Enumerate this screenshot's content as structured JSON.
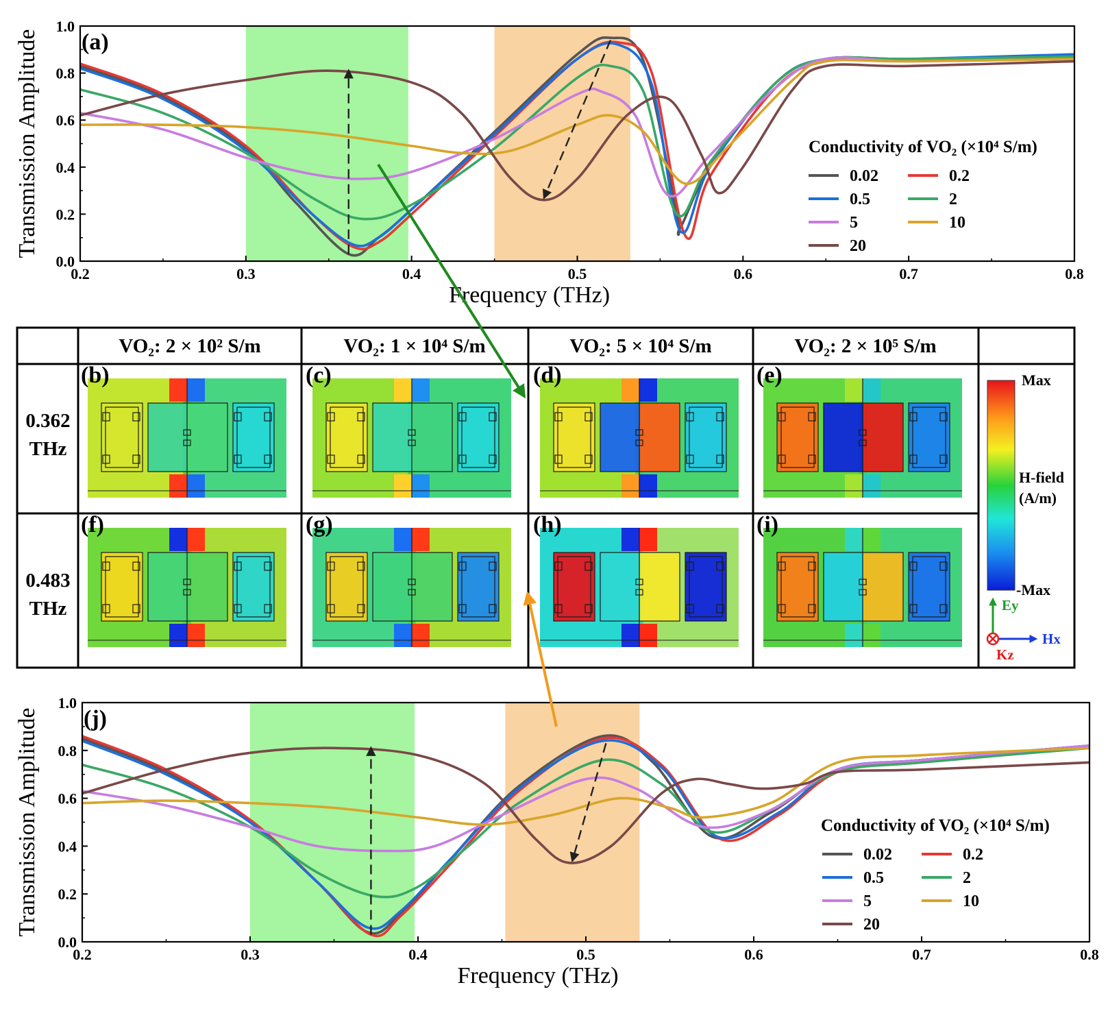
{
  "chart_data": [
    {
      "panel": "(a)",
      "type": "line",
      "xlabel": "Frequency (THz)",
      "ylabel": "Transmission Amplitude",
      "xlim": [
        0.2,
        0.8
      ],
      "ylim": [
        0.0,
        1.0
      ],
      "xticks": [
        "0.2",
        "0.3",
        "0.4",
        "0.5",
        "0.6",
        "0.7",
        "0.8"
      ],
      "yticks": [
        "0.0",
        "0.2",
        "0.4",
        "0.6",
        "0.8",
        "1.0"
      ],
      "legend_title": "Conductivity of VO₂ (×10⁴ S/m)",
      "shaded_bands": [
        {
          "x0": 0.3,
          "x1": 0.398,
          "color": "#a6f5a0"
        },
        {
          "x0": 0.45,
          "x1": 0.532,
          "color": "#f9d3a2"
        }
      ],
      "arrows": [
        {
          "from": [
            0.362,
            0.03
          ],
          "to": [
            0.362,
            0.81
          ]
        },
        {
          "from": [
            0.52,
            0.94
          ],
          "to": [
            0.48,
            0.27
          ]
        }
      ],
      "series": [
        {
          "name": "0.02",
          "color": "#555555",
          "points": [
            [
              0.2,
              0.83
            ],
            [
              0.25,
              0.7
            ],
            [
              0.3,
              0.48
            ],
            [
              0.33,
              0.25
            ],
            [
              0.362,
              0.03
            ],
            [
              0.38,
              0.1
            ],
            [
              0.4,
              0.22
            ],
            [
              0.45,
              0.55
            ],
            [
              0.5,
              0.88
            ],
            [
              0.52,
              0.95
            ],
            [
              0.54,
              0.85
            ],
            [
              0.56,
              0.2
            ],
            [
              0.562,
              0.14
            ],
            [
              0.58,
              0.4
            ],
            [
              0.62,
              0.76
            ],
            [
              0.65,
              0.86
            ],
            [
              0.7,
              0.86
            ],
            [
              0.8,
              0.87
            ]
          ]
        },
        {
          "name": "0.2",
          "color": "#e53935",
          "points": [
            [
              0.2,
              0.84
            ],
            [
              0.25,
              0.71
            ],
            [
              0.3,
              0.49
            ],
            [
              0.34,
              0.2
            ],
            [
              0.365,
              0.06
            ],
            [
              0.38,
              0.08
            ],
            [
              0.4,
              0.2
            ],
            [
              0.45,
              0.53
            ],
            [
              0.5,
              0.86
            ],
            [
              0.525,
              0.93
            ],
            [
              0.545,
              0.8
            ],
            [
              0.565,
              0.11
            ],
            [
              0.58,
              0.36
            ],
            [
              0.62,
              0.74
            ],
            [
              0.65,
              0.85
            ],
            [
              0.7,
              0.86
            ],
            [
              0.8,
              0.87
            ]
          ]
        },
        {
          "name": "0.5",
          "color": "#1e6fd9",
          "points": [
            [
              0.2,
              0.82
            ],
            [
              0.25,
              0.69
            ],
            [
              0.3,
              0.47
            ],
            [
              0.34,
              0.2
            ],
            [
              0.365,
              0.07
            ],
            [
              0.38,
              0.1
            ],
            [
              0.4,
              0.22
            ],
            [
              0.45,
              0.54
            ],
            [
              0.5,
              0.86
            ],
            [
              0.525,
              0.92
            ],
            [
              0.545,
              0.75
            ],
            [
              0.562,
              0.13
            ],
            [
              0.58,
              0.4
            ],
            [
              0.62,
              0.76
            ],
            [
              0.65,
              0.86
            ],
            [
              0.7,
              0.86
            ],
            [
              0.8,
              0.88
            ]
          ]
        },
        {
          "name": "2",
          "color": "#3aa866",
          "points": [
            [
              0.2,
              0.73
            ],
            [
              0.25,
              0.63
            ],
            [
              0.3,
              0.46
            ],
            [
              0.34,
              0.27
            ],
            [
              0.37,
              0.18
            ],
            [
              0.4,
              0.24
            ],
            [
              0.45,
              0.48
            ],
            [
              0.5,
              0.78
            ],
            [
              0.52,
              0.83
            ],
            [
              0.54,
              0.72
            ],
            [
              0.56,
              0.2
            ],
            [
              0.58,
              0.42
            ],
            [
              0.62,
              0.76
            ],
            [
              0.65,
              0.86
            ],
            [
              0.7,
              0.86
            ],
            [
              0.8,
              0.87
            ]
          ]
        },
        {
          "name": "5",
          "color": "#c77de0",
          "points": [
            [
              0.2,
              0.63
            ],
            [
              0.25,
              0.56
            ],
            [
              0.3,
              0.44
            ],
            [
              0.34,
              0.37
            ],
            [
              0.37,
              0.35
            ],
            [
              0.4,
              0.38
            ],
            [
              0.45,
              0.52
            ],
            [
              0.5,
              0.71
            ],
            [
              0.515,
              0.72
            ],
            [
              0.535,
              0.62
            ],
            [
              0.555,
              0.28
            ],
            [
              0.58,
              0.45
            ],
            [
              0.62,
              0.74
            ],
            [
              0.65,
              0.86
            ],
            [
              0.7,
              0.85
            ],
            [
              0.8,
              0.86
            ]
          ]
        },
        {
          "name": "10",
          "color": "#d8a52a",
          "points": [
            [
              0.2,
              0.58
            ],
            [
              0.25,
              0.58
            ],
            [
              0.3,
              0.57
            ],
            [
              0.35,
              0.54
            ],
            [
              0.4,
              0.49
            ],
            [
              0.43,
              0.46
            ],
            [
              0.46,
              0.47
            ],
            [
              0.5,
              0.58
            ],
            [
              0.52,
              0.62
            ],
            [
              0.54,
              0.55
            ],
            [
              0.565,
              0.33
            ],
            [
              0.59,
              0.48
            ],
            [
              0.63,
              0.77
            ],
            [
              0.65,
              0.85
            ],
            [
              0.7,
              0.85
            ],
            [
              0.8,
              0.86
            ]
          ]
        },
        {
          "name": "20",
          "color": "#7a4848",
          "points": [
            [
              0.2,
              0.62
            ],
            [
              0.25,
              0.71
            ],
            [
              0.3,
              0.77
            ],
            [
              0.35,
              0.81
            ],
            [
              0.4,
              0.76
            ],
            [
              0.43,
              0.63
            ],
            [
              0.46,
              0.35
            ],
            [
              0.48,
              0.26
            ],
            [
              0.5,
              0.35
            ],
            [
              0.53,
              0.62
            ],
            [
              0.555,
              0.69
            ],
            [
              0.575,
              0.45
            ],
            [
              0.585,
              0.29
            ],
            [
              0.6,
              0.4
            ],
            [
              0.63,
              0.73
            ],
            [
              0.65,
              0.83
            ],
            [
              0.7,
              0.83
            ],
            [
              0.8,
              0.85
            ]
          ]
        }
      ]
    },
    {
      "panel": "(j)",
      "type": "line",
      "xlabel": "Frequency (THz)",
      "ylabel": "Transmission Amplitude",
      "xlim": [
        0.2,
        0.8
      ],
      "ylim": [
        0.0,
        1.0
      ],
      "xticks": [
        "0.2",
        "0.3",
        "0.4",
        "0.5",
        "0.6",
        "0.7",
        "0.8"
      ],
      "yticks": [
        "0.0",
        "0.2",
        "0.4",
        "0.6",
        "0.8",
        "1.0"
      ],
      "legend_title": "Conductivity of VO₂ (×10⁴ S/m)",
      "shaded_bands": [
        {
          "x0": 0.3,
          "x1": 0.398,
          "color": "#a6f5a0"
        },
        {
          "x0": 0.452,
          "x1": 0.532,
          "color": "#f9d3a2"
        }
      ],
      "arrows": [
        {
          "from": [
            0.372,
            0.03
          ],
          "to": [
            0.372,
            0.81
          ]
        },
        {
          "from": [
            0.512,
            0.83
          ],
          "to": [
            0.492,
            0.34
          ]
        }
      ],
      "series": [
        {
          "name": "0.02",
          "color": "#555555",
          "points": [
            [
              0.2,
              0.85
            ],
            [
              0.25,
              0.71
            ],
            [
              0.3,
              0.5
            ],
            [
              0.34,
              0.25
            ],
            [
              0.37,
              0.04
            ],
            [
              0.39,
              0.12
            ],
            [
              0.42,
              0.35
            ],
            [
              0.46,
              0.65
            ],
            [
              0.51,
              0.86
            ],
            [
              0.54,
              0.75
            ],
            [
              0.575,
              0.44
            ],
            [
              0.61,
              0.54
            ],
            [
              0.65,
              0.72
            ],
            [
              0.7,
              0.76
            ],
            [
              0.8,
              0.82
            ]
          ]
        },
        {
          "name": "0.2",
          "color": "#e53935",
          "points": [
            [
              0.2,
              0.86
            ],
            [
              0.25,
              0.72
            ],
            [
              0.3,
              0.51
            ],
            [
              0.34,
              0.25
            ],
            [
              0.372,
              0.03
            ],
            [
              0.39,
              0.11
            ],
            [
              0.42,
              0.33
            ],
            [
              0.46,
              0.63
            ],
            [
              0.51,
              0.85
            ],
            [
              0.545,
              0.74
            ],
            [
              0.58,
              0.43
            ],
            [
              0.615,
              0.53
            ],
            [
              0.65,
              0.71
            ],
            [
              0.7,
              0.76
            ],
            [
              0.8,
              0.81
            ]
          ]
        },
        {
          "name": "0.5",
          "color": "#1e6fd9",
          "points": [
            [
              0.2,
              0.84
            ],
            [
              0.25,
              0.7
            ],
            [
              0.3,
              0.5
            ],
            [
              0.34,
              0.25
            ],
            [
              0.37,
              0.06
            ],
            [
              0.39,
              0.13
            ],
            [
              0.42,
              0.35
            ],
            [
              0.46,
              0.64
            ],
            [
              0.51,
              0.84
            ],
            [
              0.545,
              0.73
            ],
            [
              0.578,
              0.44
            ],
            [
              0.615,
              0.54
            ],
            [
              0.65,
              0.72
            ],
            [
              0.7,
              0.76
            ],
            [
              0.8,
              0.82
            ]
          ]
        },
        {
          "name": "2",
          "color": "#3aa866",
          "points": [
            [
              0.2,
              0.74
            ],
            [
              0.25,
              0.64
            ],
            [
              0.3,
              0.48
            ],
            [
              0.34,
              0.29
            ],
            [
              0.375,
              0.19
            ],
            [
              0.4,
              0.23
            ],
            [
              0.43,
              0.4
            ],
            [
              0.46,
              0.58
            ],
            [
              0.51,
              0.76
            ],
            [
              0.545,
              0.66
            ],
            [
              0.575,
              0.46
            ],
            [
              0.61,
              0.55
            ],
            [
              0.65,
              0.71
            ],
            [
              0.7,
              0.75
            ],
            [
              0.8,
              0.81
            ]
          ]
        },
        {
          "name": "5",
          "color": "#c77de0",
          "points": [
            [
              0.2,
              0.63
            ],
            [
              0.25,
              0.57
            ],
            [
              0.3,
              0.48
            ],
            [
              0.34,
              0.4
            ],
            [
              0.38,
              0.38
            ],
            [
              0.41,
              0.4
            ],
            [
              0.45,
              0.53
            ],
            [
              0.5,
              0.68
            ],
            [
              0.53,
              0.64
            ],
            [
              0.57,
              0.48
            ],
            [
              0.61,
              0.55
            ],
            [
              0.65,
              0.72
            ],
            [
              0.7,
              0.76
            ],
            [
              0.8,
              0.82
            ]
          ]
        },
        {
          "name": "10",
          "color": "#d8a52a",
          "points": [
            [
              0.2,
              0.58
            ],
            [
              0.25,
              0.59
            ],
            [
              0.3,
              0.58
            ],
            [
              0.35,
              0.56
            ],
            [
              0.4,
              0.52
            ],
            [
              0.44,
              0.49
            ],
            [
              0.48,
              0.53
            ],
            [
              0.52,
              0.6
            ],
            [
              0.55,
              0.56
            ],
            [
              0.57,
              0.52
            ],
            [
              0.61,
              0.58
            ],
            [
              0.65,
              0.75
            ],
            [
              0.7,
              0.78
            ],
            [
              0.8,
              0.81
            ]
          ]
        },
        {
          "name": "20",
          "color": "#7a4848",
          "points": [
            [
              0.2,
              0.62
            ],
            [
              0.25,
              0.72
            ],
            [
              0.3,
              0.79
            ],
            [
              0.35,
              0.81
            ],
            [
              0.4,
              0.78
            ],
            [
              0.44,
              0.66
            ],
            [
              0.47,
              0.43
            ],
            [
              0.49,
              0.33
            ],
            [
              0.515,
              0.4
            ],
            [
              0.545,
              0.62
            ],
            [
              0.565,
              0.68
            ],
            [
              0.585,
              0.66
            ],
            [
              0.605,
              0.64
            ],
            [
              0.63,
              0.66
            ],
            [
              0.65,
              0.71
            ],
            [
              0.7,
              0.72
            ],
            [
              0.8,
              0.75
            ]
          ]
        }
      ]
    }
  ],
  "panel_a_letter": "(a)",
  "panel_j_letter": "(j)",
  "axis_label_x": "Frequency (THz)",
  "axis_label_y": "Transmission Amplitude",
  "legend_title": "Conductivity of VO₂ (×10⁴ S/m)",
  "field_maps": {
    "column_headers": [
      "VO₂: 2 × 10² S/m",
      "VO₂: 1 × 10⁴ S/m",
      "VO₂: 5 × 10⁴ S/m",
      "VO₂: 2 × 10⁵ S/m"
    ],
    "row_labels": [
      {
        "line1": "0.362",
        "line2": "THz"
      },
      {
        "line1": "0.483",
        "line2": "THz"
      }
    ],
    "panel_letters": [
      "(b)",
      "(c)",
      "(d)",
      "(e)",
      "(f)",
      "(g)",
      "(h)",
      "(i)"
    ],
    "colorbar": {
      "max": "Max",
      "min": "-Max",
      "title_line1": "H-field",
      "title_line2": "(A/m)"
    },
    "axes_labels": {
      "ey": "Ey",
      "hx": "Hx",
      "kz": "Kz"
    }
  }
}
